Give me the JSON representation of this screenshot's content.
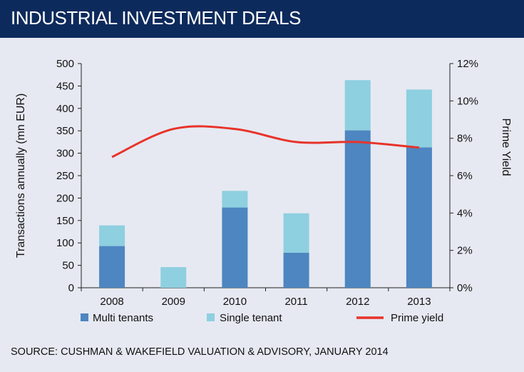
{
  "header": {
    "title": "INDUSTRIAL INVESTMENT DEALS"
  },
  "source": "SOURCE: CUSHMAN & WAKEFIELD VALUATION & ADVISORY, JANUARY 2014",
  "colors": {
    "multi": "#4d86c0",
    "single": "#8ecfe0",
    "prime": "#e8332a",
    "header_bg": "#0d2a5c",
    "background": "#e6e9f2"
  },
  "chart_data": {
    "type": "bar",
    "stacked": true,
    "categories": [
      "2008",
      "2009",
      "2010",
      "2011",
      "2012",
      "2013"
    ],
    "series": [
      {
        "name": "Multi tenants",
        "type": "bar",
        "axis": "left",
        "values": [
          93,
          0,
          179,
          78,
          351,
          313
        ]
      },
      {
        "name": "Single tenant",
        "type": "bar",
        "axis": "left",
        "values": [
          46,
          46,
          37,
          88,
          112,
          129
        ]
      },
      {
        "name": "Prime yield",
        "type": "line",
        "axis": "right",
        "values": [
          7.0,
          8.5,
          8.5,
          7.8,
          7.8,
          7.5
        ]
      }
    ],
    "ylabel": "Transactions annually (mn EUR)",
    "ylim": [
      0,
      500
    ],
    "yticks": [
      "0",
      "50",
      "100",
      "150",
      "200",
      "250",
      "300",
      "350",
      "400",
      "450",
      "500"
    ],
    "y2label": "Prime Yield",
    "y2lim": [
      0,
      12
    ],
    "y2ticks": [
      "0%",
      "2%",
      "4%",
      "6%",
      "8%",
      "10%",
      "12%"
    ],
    "legend_position": "bottom",
    "grid": false
  }
}
